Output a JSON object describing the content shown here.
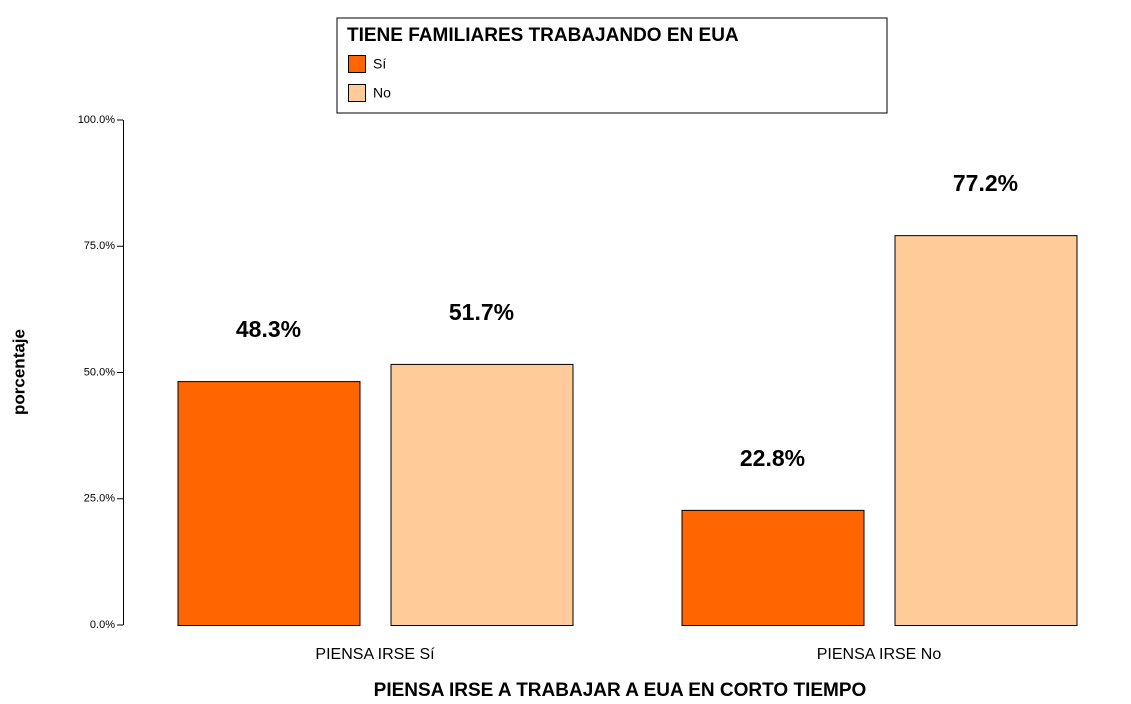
{
  "chart_data": {
    "type": "bar",
    "x_label": "PIENSA IRSE A TRABAJAR A EUA EN CORTO TIEMPO",
    "y_label": "porcentaje",
    "legend_title": "TIENE FAMILIARES TRABAJANDO EN EUA",
    "categories": [
      "PIENSA IRSE Sí",
      "PIENSA IRSE No"
    ],
    "series": [
      {
        "name": "Sí",
        "color": "#ff6600",
        "values": [
          48.3,
          22.8
        ],
        "value_labels": [
          "48.3%",
          "22.8%"
        ]
      },
      {
        "name": "No",
        "color": "#ffcc99",
        "values": [
          51.7,
          77.2
        ],
        "value_labels": [
          "51.7%",
          "77.2%"
        ]
      }
    ],
    "ylim": [
      0,
      100
    ],
    "yticks": [
      {
        "value": 0,
        "label": "0.0%"
      },
      {
        "value": 25,
        "label": "25.0%"
      },
      {
        "value": 50,
        "label": "50.0%"
      },
      {
        "value": 75,
        "label": "75.0%"
      },
      {
        "value": 100,
        "label": "100.0%"
      }
    ],
    "legend_position": "top"
  }
}
